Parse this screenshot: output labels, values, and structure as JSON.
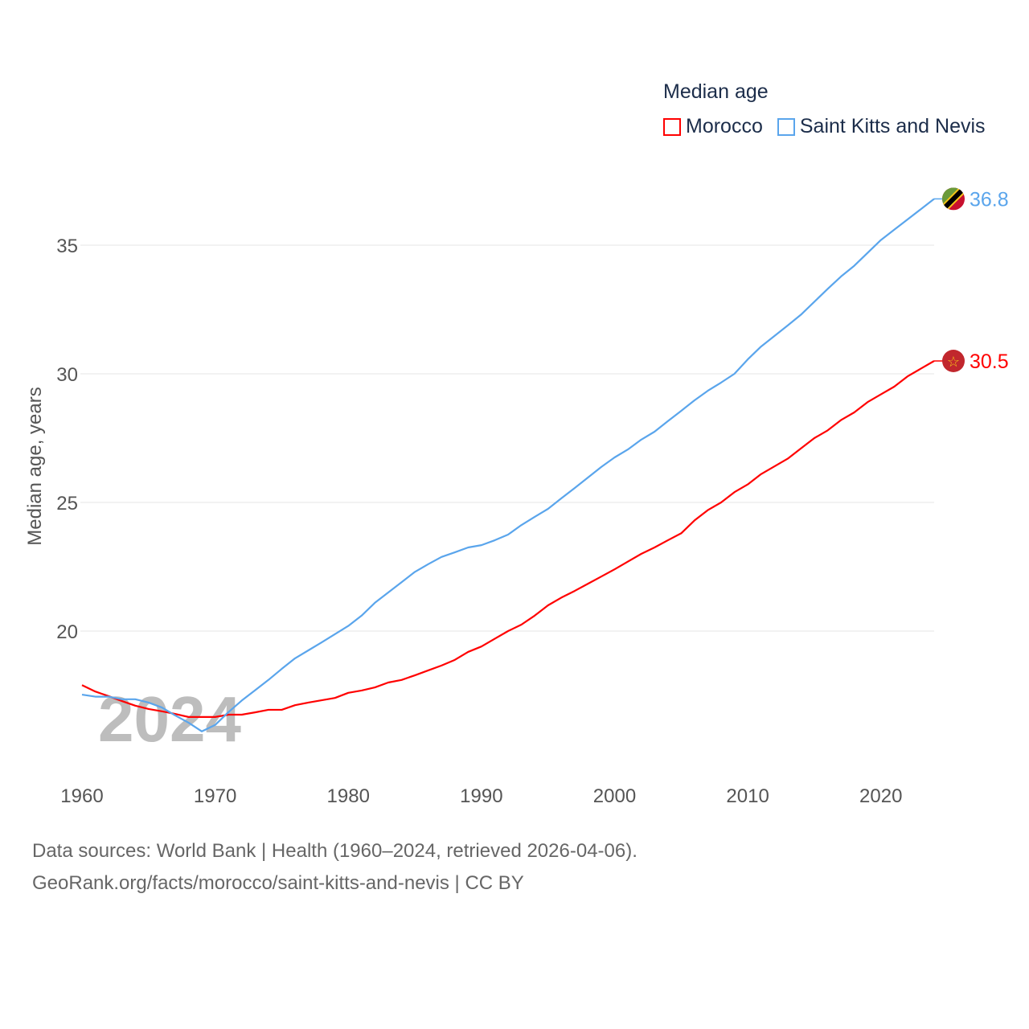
{
  "chart_data": {
    "type": "line",
    "title": "Median age",
    "ylabel": "Median age, years",
    "xlabel": "",
    "xlim": [
      1960,
      2024
    ],
    "ylim": [
      15,
      37
    ],
    "x_ticks": [
      1960,
      1970,
      1980,
      1990,
      2000,
      2010,
      2020
    ],
    "y_ticks": [
      20,
      25,
      30,
      35
    ],
    "grid": true,
    "legend_placement": "top-right",
    "watermark": "2024",
    "x": [
      1960,
      1961,
      1962,
      1963,
      1964,
      1965,
      1966,
      1967,
      1968,
      1969,
      1970,
      1971,
      1972,
      1973,
      1974,
      1975,
      1976,
      1977,
      1978,
      1979,
      1980,
      1981,
      1982,
      1983,
      1984,
      1985,
      1986,
      1987,
      1988,
      1989,
      1990,
      1991,
      1992,
      1993,
      1994,
      1995,
      1996,
      1997,
      1998,
      1999,
      2000,
      2001,
      2002,
      2003,
      2004,
      2005,
      2006,
      2007,
      2008,
      2009,
      2010,
      2011,
      2012,
      2013,
      2014,
      2015,
      2016,
      2017,
      2018,
      2019,
      2020,
      2021,
      2022,
      2023,
      2024
    ],
    "series": [
      {
        "name": "Morocco",
        "color": "#ff0000",
        "end_label": "30.5",
        "values": [
          17.9,
          17.65,
          17.47,
          17.28,
          17.1,
          16.97,
          16.88,
          16.78,
          16.66,
          16.66,
          16.66,
          16.75,
          16.75,
          16.84,
          16.94,
          16.94,
          17.12,
          17.22,
          17.31,
          17.4,
          17.6,
          17.69,
          17.81,
          18.0,
          18.1,
          18.28,
          18.47,
          18.66,
          18.88,
          19.19,
          19.4,
          19.7,
          20.0,
          20.25,
          20.6,
          21.0,
          21.3,
          21.56,
          21.84,
          22.12,
          22.4,
          22.7,
          23.0,
          23.25,
          23.53,
          23.8,
          24.3,
          24.7,
          25.0,
          25.4,
          25.7,
          26.1,
          26.4,
          26.7,
          27.1,
          27.5,
          27.8,
          28.2,
          28.5,
          28.9,
          29.2,
          29.5,
          29.9,
          30.2,
          30.5
        ]
      },
      {
        "name": "Saint Kitts and Nevis",
        "color": "#5aa5ec",
        "end_label": "36.8",
        "values": [
          17.53,
          17.45,
          17.45,
          17.35,
          17.35,
          17.22,
          17.03,
          16.72,
          16.44,
          16.1,
          16.35,
          16.85,
          17.3,
          17.7,
          18.1,
          18.53,
          18.94,
          19.25,
          19.56,
          19.88,
          20.2,
          20.6,
          21.1,
          21.5,
          21.9,
          22.3,
          22.6,
          22.88,
          23.06,
          23.25,
          23.34,
          23.53,
          23.75,
          24.12,
          24.44,
          24.75,
          25.16,
          25.56,
          25.97,
          26.38,
          26.75,
          27.06,
          27.44,
          27.75,
          28.16,
          28.56,
          28.97,
          29.34,
          29.66,
          30.0,
          30.56,
          31.06,
          31.47,
          31.88,
          32.3,
          32.8,
          33.3,
          33.78,
          34.2,
          34.7,
          35.2,
          35.6,
          36.0,
          36.4,
          36.8
        ]
      }
    ]
  },
  "footer": {
    "line1": "Data sources: World Bank | Health (1960–2024, retrieved 2026-04-06).",
    "line2": "GeoRank.org/facts/morocco/saint-kitts-and-nevis | CC BY"
  }
}
